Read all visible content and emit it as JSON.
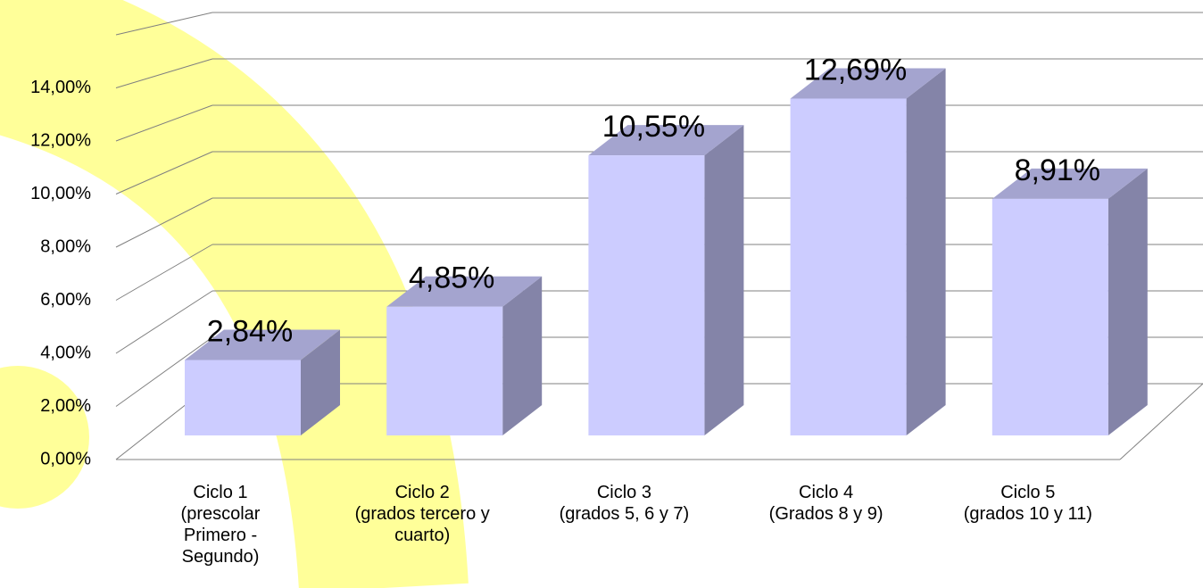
{
  "chart_data": {
    "type": "bar3d",
    "categories": [
      "Ciclo 1\n(prescolar\nPrimero -\nSegundo)",
      "Ciclo 2\n(grados tercero y\ncuarto)",
      "Ciclo 3\n(grados 5, 6 y 7)",
      "Ciclo 4\n(Grados 8 y 9)",
      "Ciclo 5\n(grados 10 y 11)"
    ],
    "values": [
      2.84,
      4.85,
      10.55,
      12.69,
      8.91
    ],
    "value_labels": [
      "2,84%",
      "4,85%",
      "10,55%",
      "12,69%",
      "8,91%"
    ],
    "color": "#ccccff",
    "ylim": [
      0,
      16
    ],
    "yticks": [
      {
        "value": 0,
        "label": "0,00%"
      },
      {
        "value": 2,
        "label": "2,00%"
      },
      {
        "value": 4,
        "label": "4,00%"
      },
      {
        "value": 6,
        "label": "6,00%"
      },
      {
        "value": 8,
        "label": "8,00%"
      },
      {
        "value": 10,
        "label": "10,00%"
      },
      {
        "value": 12,
        "label": "12,00%"
      },
      {
        "value": 14,
        "label": "14,00%"
      }
    ],
    "grid": true
  }
}
